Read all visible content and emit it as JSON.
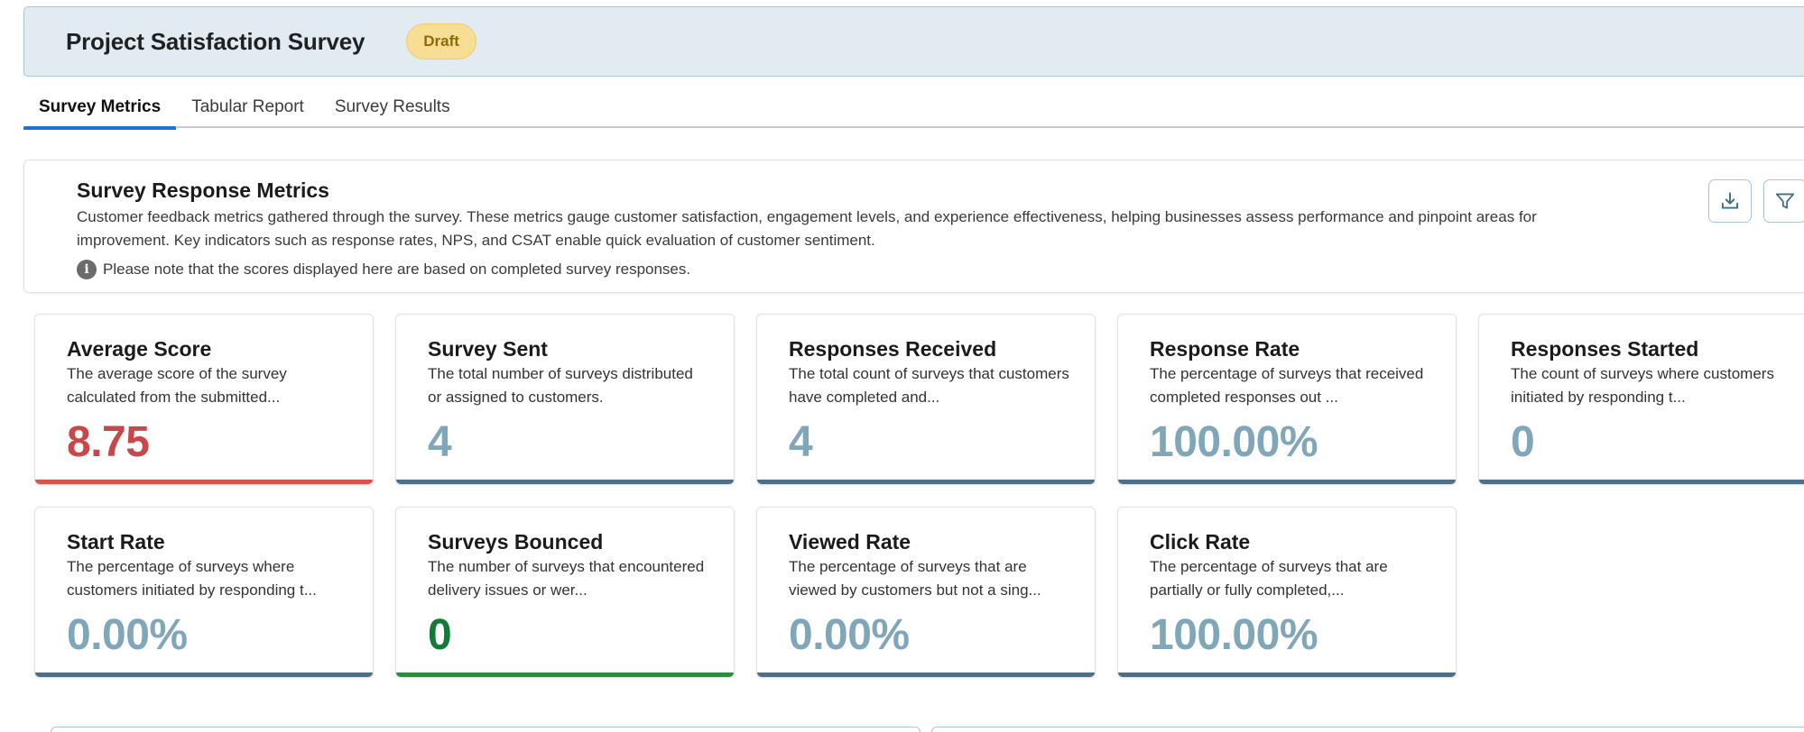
{
  "header": {
    "title": "Project Satisfaction Survey",
    "status_badge": "Draft"
  },
  "tabs": [
    {
      "label": "Survey Metrics",
      "active": true
    },
    {
      "label": "Tabular Report",
      "active": false
    },
    {
      "label": "Survey Results",
      "active": false
    }
  ],
  "metrics_panel": {
    "title": "Survey Response Metrics",
    "description": "Customer feedback metrics gathered through the survey. These metrics gauge customer satisfaction, engagement levels, and experience effectiveness, helping businesses assess performance and pinpoint areas for improvement. Key indicators such as response rates, NPS, and CSAT enable quick evaluation of customer sentiment.",
    "note": "Please note that the scores displayed here are based on completed survey responses.",
    "download_icon": "download-icon",
    "filter_icon": "filter-icon"
  },
  "cards": [
    {
      "title": "Average Score",
      "description": "The average score of the survey calculated from the submitted...",
      "value": "8.75",
      "value_color": "#c7474b",
      "bar_color": "#d9534f"
    },
    {
      "title": "Survey Sent",
      "description": "The total number of surveys distributed or assigned to customers.",
      "value": "4",
      "value_color": "#80a6b9",
      "bar_color": "#4f6f89"
    },
    {
      "title": "Responses Received",
      "description": "The total count of surveys that customers have completed and...",
      "value": "4",
      "value_color": "#80a6b9",
      "bar_color": "#4f6f89"
    },
    {
      "title": "Response Rate",
      "description": "The percentage of surveys that received completed responses out ...",
      "value": "100.00%",
      "value_color": "#80a6b9",
      "bar_color": "#4f6f89"
    },
    {
      "title": "Responses Started",
      "description": "The count of surveys where customers initiated by responding t...",
      "value": "0",
      "value_color": "#80a6b9",
      "bar_color": "#4f6f89"
    },
    {
      "title": "Start Rate",
      "description": "The percentage of surveys where customers initiated by responding t...",
      "value": "0.00%",
      "value_color": "#80a6b9",
      "bar_color": "#4f6f89"
    },
    {
      "title": "Surveys Bounced",
      "description": "The number of surveys that encountered delivery issues or wer...",
      "value": "0",
      "value_color": "#137a3a",
      "bar_color": "#2e8b3e"
    },
    {
      "title": "Viewed Rate",
      "description": "The percentage of surveys that are viewed by customers but not a sing...",
      "value": "0.00%",
      "value_color": "#80a6b9",
      "bar_color": "#4f6f89"
    },
    {
      "title": "Click Rate",
      "description": "The percentage of surveys that are partially or fully completed,...",
      "value": "100.00%",
      "value_color": "#80a6b9",
      "bar_color": "#4f6f89"
    }
  ]
}
